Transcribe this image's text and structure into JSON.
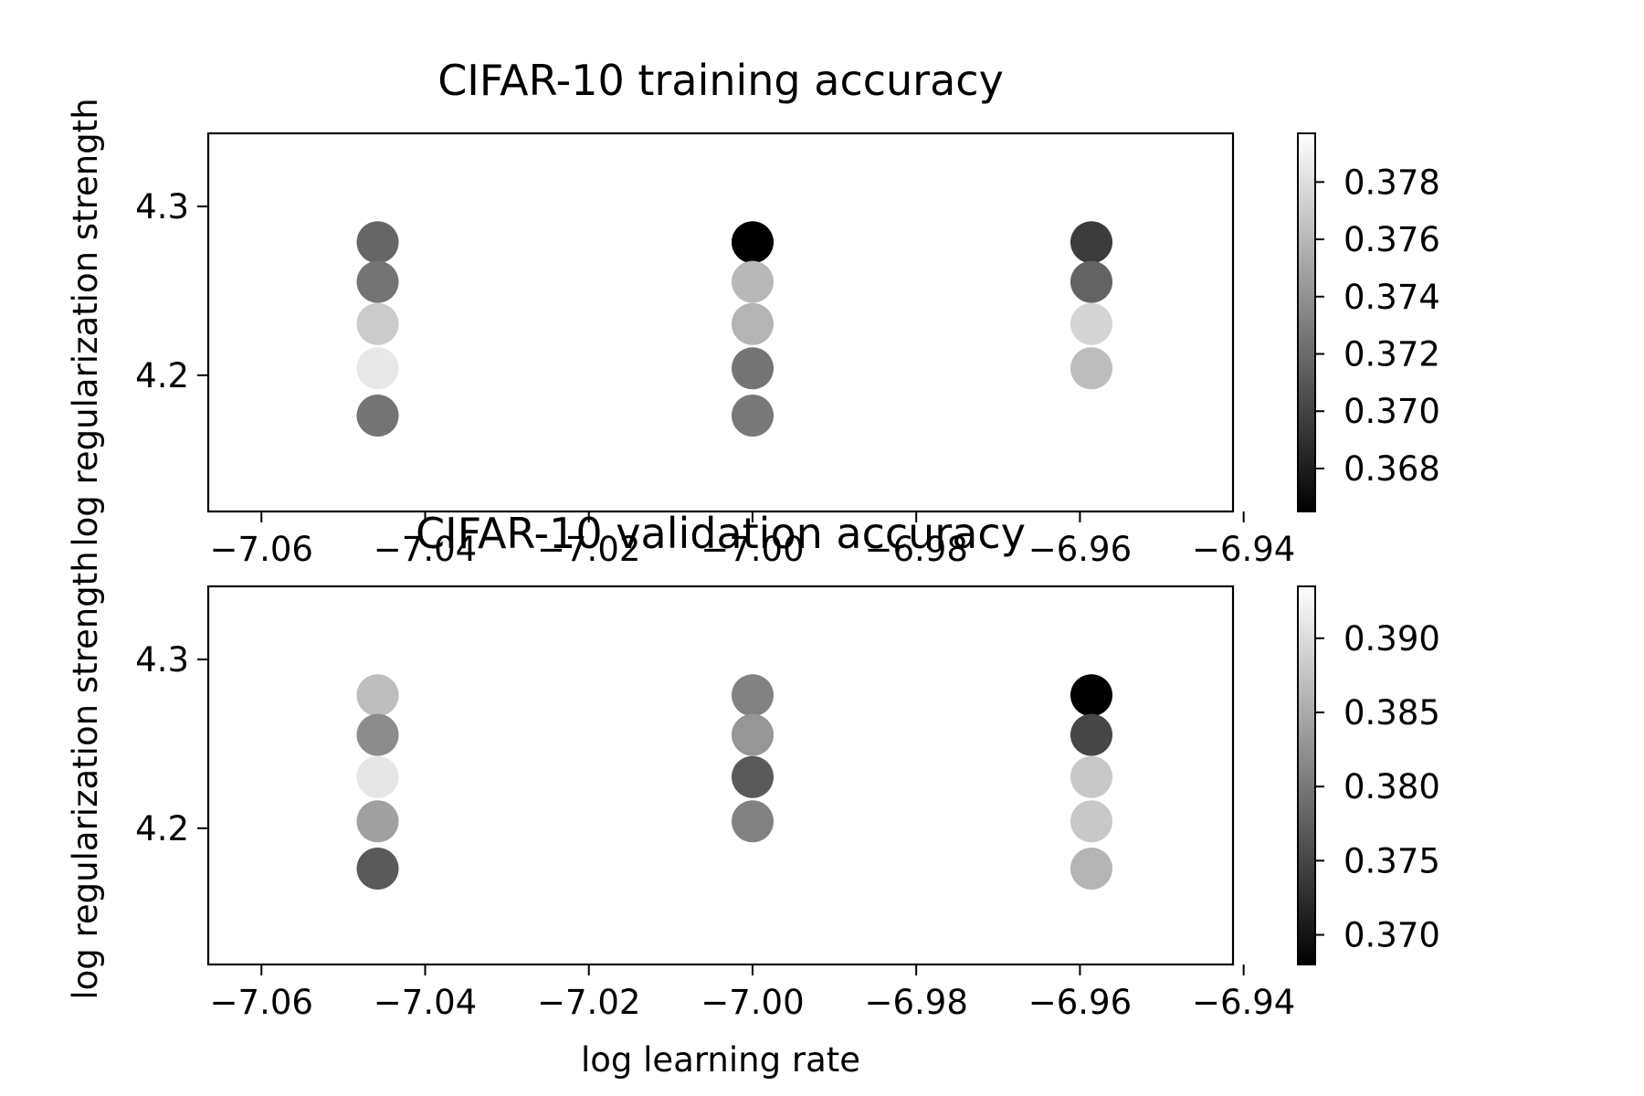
{
  "chart_data": [
    {
      "type": "scatter",
      "title": "CIFAR-10 training accuracy",
      "xlabel": "",
      "ylabel": "log regularization strength",
      "xlim": [
        -7.0665,
        -6.9413
      ],
      "ylim": [
        4.1193,
        4.3433
      ],
      "x_ticks": [
        -7.06,
        -7.04,
        -7.02,
        -7.0,
        -6.98,
        -6.96,
        -6.94
      ],
      "x_tick_labels": [
        "−7.06",
        "−7.04",
        "−7.02",
        "−7.00",
        "−6.98",
        "−6.96",
        "−6.94"
      ],
      "y_ticks": [
        4.2,
        4.3
      ],
      "y_tick_labels": [
        "4.2",
        "4.3"
      ],
      "colormap": "gray",
      "color_range": [
        0.3665,
        0.3797
      ],
      "colorbar_ticks": [
        0.368,
        0.37,
        0.372,
        0.374,
        0.376,
        0.378
      ],
      "colorbar_tick_labels": [
        "0.368",
        "0.370",
        "0.372",
        "0.374",
        "0.376",
        "0.378"
      ],
      "points": [
        {
          "x": -7.0458,
          "y": 4.2788,
          "value": 0.3718
        },
        {
          "x": -7.0458,
          "y": 4.2553,
          "value": 0.3725
        },
        {
          "x": -7.0458,
          "y": 4.2304,
          "value": 0.377
        },
        {
          "x": -7.0458,
          "y": 4.2041,
          "value": 0.3785
        },
        {
          "x": -7.0458,
          "y": 4.1761,
          "value": 0.3725
        },
        {
          "x": -7.0,
          "y": 4.2788,
          "value": 0.3665
        },
        {
          "x": -7.0,
          "y": 4.2553,
          "value": 0.376
        },
        {
          "x": -7.0,
          "y": 4.2304,
          "value": 0.3758
        },
        {
          "x": -7.0,
          "y": 4.2041,
          "value": 0.3725
        },
        {
          "x": -7.0,
          "y": 4.1761,
          "value": 0.3727
        },
        {
          "x": -6.9586,
          "y": 4.2788,
          "value": 0.3696
        },
        {
          "x": -6.9586,
          "y": 4.2553,
          "value": 0.3716
        },
        {
          "x": -6.9586,
          "y": 4.2304,
          "value": 0.3775
        },
        {
          "x": -6.9586,
          "y": 4.2041,
          "value": 0.3763
        }
      ]
    },
    {
      "type": "scatter",
      "title": "CIFAR-10 validation accuracy",
      "xlabel": "log learning rate",
      "ylabel": "log regularization strength",
      "xlim": [
        -7.0665,
        -6.9413
      ],
      "ylim": [
        4.1193,
        4.3433
      ],
      "x_ticks": [
        -7.06,
        -7.04,
        -7.02,
        -7.0,
        -6.98,
        -6.96,
        -6.94
      ],
      "x_tick_labels": [
        "−7.06",
        "−7.04",
        "−7.02",
        "−7.00",
        "−6.98",
        "−6.96",
        "−6.94"
      ],
      "y_ticks": [
        4.2,
        4.3
      ],
      "y_tick_labels": [
        "4.2",
        "4.3"
      ],
      "colormap": "gray",
      "color_range": [
        0.368,
        0.3935
      ],
      "colorbar_ticks": [
        0.37,
        0.375,
        0.38,
        0.385,
        0.39
      ],
      "colorbar_tick_labels": [
        "0.370",
        "0.375",
        "0.380",
        "0.385",
        "0.390"
      ],
      "points": [
        {
          "x": -7.0458,
          "y": 4.2788,
          "value": 0.387
        },
        {
          "x": -7.0458,
          "y": 4.2553,
          "value": 0.382
        },
        {
          "x": -7.0458,
          "y": 4.2304,
          "value": 0.391
        },
        {
          "x": -7.0458,
          "y": 4.2041,
          "value": 0.384
        },
        {
          "x": -7.0458,
          "y": 4.1761,
          "value": 0.377
        },
        {
          "x": -7.0,
          "y": 4.2788,
          "value": 0.381
        },
        {
          "x": -7.0,
          "y": 4.2553,
          "value": 0.383
        },
        {
          "x": -7.0,
          "y": 4.2304,
          "value": 0.377
        },
        {
          "x": -7.0,
          "y": 4.2041,
          "value": 0.381
        },
        {
          "x": -6.9586,
          "y": 4.2788,
          "value": 0.368
        },
        {
          "x": -6.9586,
          "y": 4.2553,
          "value": 0.375
        },
        {
          "x": -6.9586,
          "y": 4.2304,
          "value": 0.388
        },
        {
          "x": -6.9586,
          "y": 4.2041,
          "value": 0.388
        },
        {
          "x": -6.9586,
          "y": 4.1761,
          "value": 0.386
        }
      ]
    }
  ]
}
